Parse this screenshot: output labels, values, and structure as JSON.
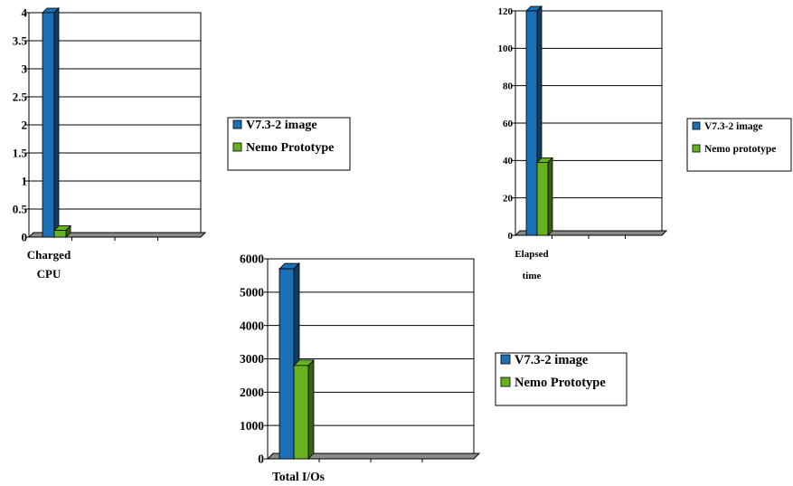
{
  "colors": {
    "series_1": "#1a6fb5",
    "series_2": "#66b21f",
    "grid": "#000000",
    "background": "#ffffff"
  },
  "chart_data": [
    {
      "type": "bar",
      "categories": [
        "Charged CPU"
      ],
      "category_lines": [
        "Charged",
        "CPU"
      ],
      "series": [
        {
          "name": "V7.3-2 image",
          "values": [
            4.0
          ]
        },
        {
          "name": "Nemo Prototype",
          "values": [
            0.12
          ]
        }
      ],
      "ylim": [
        0,
        4
      ],
      "yticks": [
        "0",
        "0.5",
        "1",
        "1.5",
        "2",
        "2.5",
        "3",
        "3.5",
        "4"
      ],
      "grid": true,
      "three_d": true,
      "legend_position": "right"
    },
    {
      "type": "bar",
      "categories": [
        "Elapsed time"
      ],
      "category_lines": [
        "Elapsed",
        "time"
      ],
      "series": [
        {
          "name": "V7.3-2 image",
          "values": [
            120
          ]
        },
        {
          "name": "Nemo prototype",
          "values": [
            39
          ]
        }
      ],
      "ylim": [
        0,
        120
      ],
      "yticks": [
        "0",
        "20",
        "40",
        "60",
        "80",
        "100",
        "120"
      ],
      "grid": true,
      "three_d": true,
      "legend_position": "right"
    },
    {
      "type": "bar",
      "categories": [
        "Total I/Os"
      ],
      "category_lines": [
        "Total I/Os"
      ],
      "series": [
        {
          "name": "V7.3-2 image",
          "values": [
            5700
          ]
        },
        {
          "name": "Nemo Prototype",
          "values": [
            2800
          ]
        }
      ],
      "ylim": [
        0,
        6000
      ],
      "yticks": [
        "0",
        "1000",
        "2000",
        "3000",
        "4000",
        "5000",
        "6000"
      ],
      "grid": true,
      "three_d": true,
      "legend_position": "right"
    }
  ]
}
